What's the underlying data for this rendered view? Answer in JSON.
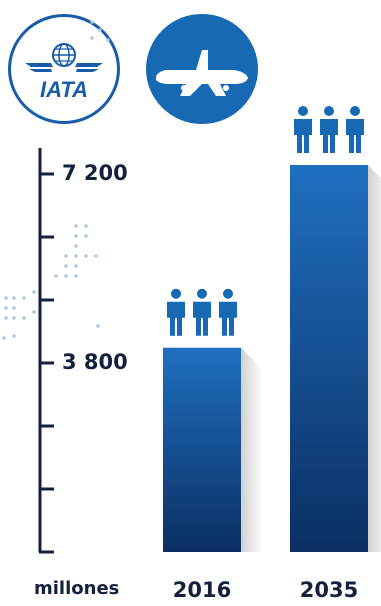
{
  "logos": {
    "iata_text": "IATA",
    "left_icon": "iata-logo-icon",
    "right_icon": "airplane-icon",
    "accent_color": "#1a5ca8"
  },
  "chart_data": {
    "type": "bar",
    "categories": [
      "2016",
      "2035"
    ],
    "values": [
      3800,
      7200
    ],
    "unit_label": "millones",
    "ylim": [
      0,
      7200
    ],
    "yticks_labeled": [
      "3 800",
      "7 200"
    ],
    "bar_color_top": "#1f6fc0",
    "bar_color_bottom": "#0b2f63",
    "axis_color": "#14213d",
    "icon": "people-group-icon"
  }
}
